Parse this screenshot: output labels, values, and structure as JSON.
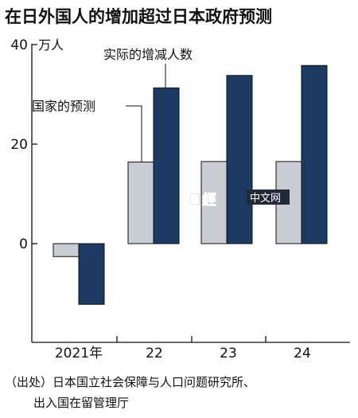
{
  "title": "在日外国人的增加超过日本政府预测",
  "unit_label": "万人",
  "chart_data": {
    "type": "bar",
    "categories": [
      "2021年",
      "22",
      "23",
      "24"
    ],
    "series": [
      {
        "name": "国家的预测",
        "values": [
          -2.6,
          16.4,
          16.5,
          16.5
        ],
        "color": "#c9ccd3"
      },
      {
        "name": "实际的增减人数",
        "values": [
          -12.2,
          31.3,
          33.8,
          35.8
        ],
        "color": "#1c3a63"
      }
    ],
    "yticks": [
      40,
      20,
      0
    ],
    "ylim": [
      -17.5,
      41
    ],
    "grid": false
  },
  "annotations": {
    "actual_label": "实际的增减人数",
    "forecast_label": "国家的预测"
  },
  "source_note": {
    "line1": "（出处）日本国立社会保障与人口问题研究所、",
    "line2": "出入国在留管理厅"
  },
  "watermark": {
    "logo": "日經",
    "text": "中文网"
  }
}
